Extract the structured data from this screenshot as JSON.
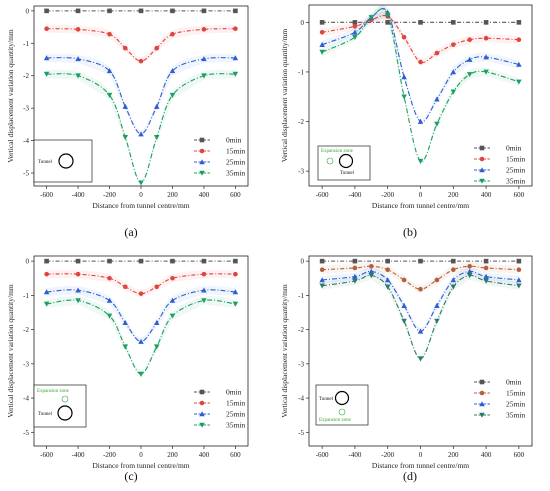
{
  "colors": {
    "0min": "#555555",
    "15min": "#e0443e",
    "25min": "#2d5fd1",
    "35min": "#1aa060",
    "inset_zone": "#33aa33",
    "axis": "#222222"
  },
  "chart_data": [
    {
      "type": "line",
      "panel_label": "(a)",
      "xlabel": "Distance from tunnel centre/mm",
      "ylabel": "Vertical displacement variation quantity/mm",
      "xlim": [
        -680,
        680
      ],
      "ylim": [
        -5.4,
        0.15
      ],
      "xticks": [
        -600,
        -400,
        -200,
        0,
        200,
        400,
        600
      ],
      "xtick_labels": [
        "-600",
        "-400",
        "-200",
        "0",
        "200",
        "400",
        "600"
      ],
      "yticks": [
        0,
        -1,
        -2,
        -3,
        -4,
        -5
      ],
      "ytick_labels": [
        "0",
        "-1",
        "-2",
        "-3",
        "-4",
        "-5"
      ],
      "legend_placement": "lower-right",
      "inset": {
        "tunnel_label": "Tunnel",
        "zone_label": ""
      },
      "x": [
        -600,
        -400,
        -200,
        -100,
        0,
        100,
        200,
        400,
        600
      ],
      "series": [
        {
          "name": "0min",
          "marker": "square",
          "color": "#555555",
          "values": [
            0,
            0,
            0,
            0,
            0,
            0,
            0,
            0,
            0
          ]
        },
        {
          "name": "15min",
          "marker": "circle",
          "color": "#e0443e",
          "values": [
            -0.55,
            -0.57,
            -0.72,
            -1.15,
            -1.55,
            -1.15,
            -0.72,
            -0.57,
            -0.55
          ]
        },
        {
          "name": "25min",
          "marker": "triangle-up",
          "color": "#2d5fd1",
          "values": [
            -1.45,
            -1.48,
            -1.85,
            -2.95,
            -3.8,
            -2.95,
            -1.85,
            -1.48,
            -1.45
          ]
        },
        {
          "name": "35min",
          "marker": "triangle-down",
          "color": "#1aa060",
          "values": [
            -1.95,
            -2.0,
            -2.6,
            -3.9,
            -5.3,
            -3.9,
            -2.6,
            -2.0,
            -1.95
          ]
        }
      ]
    },
    {
      "type": "line",
      "panel_label": "(b)",
      "xlabel": "Distance from tunnel centre/mm",
      "ylabel": "Vertical displacement variation quantity/mm",
      "xlim": [
        -680,
        680
      ],
      "ylim": [
        -3.3,
        0.35
      ],
      "xticks": [
        -600,
        -400,
        -200,
        0,
        200,
        400,
        600
      ],
      "xtick_labels": [
        "-600",
        "-400",
        "-200",
        "0",
        "200",
        "400",
        "600"
      ],
      "yticks": [
        0,
        -1,
        -2,
        -3
      ],
      "ytick_labels": [
        "0",
        "-1",
        "-2",
        "-3"
      ],
      "legend_placement": "lower-right",
      "inset": {
        "tunnel_label": "Tunnel",
        "zone_label": "Expansion zone"
      },
      "x": [
        -600,
        -400,
        -300,
        -200,
        -100,
        0,
        100,
        200,
        300,
        400,
        600
      ],
      "series": [
        {
          "name": "0min",
          "marker": "square",
          "color": "#555555",
          "values": [
            0,
            0,
            0,
            0,
            0,
            0,
            0,
            0,
            0,
            0,
            0
          ]
        },
        {
          "name": "15min",
          "marker": "circle",
          "color": "#e0443e",
          "values": [
            -0.2,
            -0.08,
            0.05,
            0.12,
            -0.3,
            -0.8,
            -0.62,
            -0.45,
            -0.35,
            -0.32,
            -0.35
          ]
        },
        {
          "name": "25min",
          "marker": "triangle-up",
          "color": "#2d5fd1",
          "values": [
            -0.45,
            -0.2,
            0.1,
            0.2,
            -1.1,
            -2.0,
            -1.55,
            -1.0,
            -0.75,
            -0.7,
            -0.85
          ]
        },
        {
          "name": "35min",
          "marker": "triangle-down",
          "color": "#1aa060",
          "values": [
            -0.6,
            -0.3,
            0.1,
            0.15,
            -1.5,
            -2.8,
            -2.05,
            -1.4,
            -1.05,
            -1.0,
            -1.2
          ]
        }
      ]
    },
    {
      "type": "line",
      "panel_label": "(c)",
      "xlabel": "Distance from tunnel centre/mm",
      "ylabel": "Vertical displacement variation quantity/mm",
      "xlim": [
        -680,
        680
      ],
      "ylim": [
        -5.4,
        0.15
      ],
      "xticks": [
        -600,
        -400,
        -200,
        0,
        200,
        400,
        600
      ],
      "xtick_labels": [
        "-600",
        "-400",
        "-200",
        "0",
        "200",
        "400",
        "600"
      ],
      "yticks": [
        0,
        -1,
        -2,
        -3,
        -4,
        -5
      ],
      "ytick_labels": [
        "0",
        "-1",
        "-2",
        "-3",
        "-4",
        "-5"
      ],
      "legend_placement": "lower-right",
      "inset": {
        "tunnel_label": "Tunnel",
        "zone_label": "Expansion zone"
      },
      "x": [
        -600,
        -400,
        -200,
        -100,
        0,
        100,
        200,
        400,
        600
      ],
      "series": [
        {
          "name": "0min",
          "marker": "square",
          "color": "#555555",
          "values": [
            0,
            0,
            0,
            0,
            0,
            0,
            0,
            0,
            0
          ]
        },
        {
          "name": "15min",
          "marker": "circle",
          "color": "#e0443e",
          "values": [
            -0.38,
            -0.38,
            -0.5,
            -0.75,
            -0.95,
            -0.75,
            -0.5,
            -0.38,
            -0.38
          ]
        },
        {
          "name": "25min",
          "marker": "triangle-up",
          "color": "#2d5fd1",
          "values": [
            -0.9,
            -0.85,
            -1.15,
            -1.8,
            -2.35,
            -1.8,
            -1.15,
            -0.85,
            -0.9
          ]
        },
        {
          "name": "35min",
          "marker": "triangle-down",
          "color": "#1aa060",
          "values": [
            -1.25,
            -1.15,
            -1.6,
            -2.5,
            -3.3,
            -2.5,
            -1.6,
            -1.15,
            -1.25
          ]
        }
      ]
    },
    {
      "type": "line",
      "panel_label": "(d)",
      "xlabel": "Distance from tunnel centre/mm",
      "ylabel": "Vertical displacement variation quantity/mm",
      "xlim": [
        -680,
        680
      ],
      "ylim": [
        -5.4,
        0.15
      ],
      "xticks": [
        -600,
        -400,
        -200,
        0,
        200,
        400,
        600
      ],
      "xtick_labels": [
        "-600",
        "-400",
        "-200",
        "0",
        "200",
        "400",
        "600"
      ],
      "yticks": [
        0,
        -1,
        -2,
        -3,
        -4,
        -5
      ],
      "ytick_labels": [
        "0",
        "-1",
        "-2",
        "-3",
        "-4",
        "-5"
      ],
      "legend_placement": "lower-right",
      "inset": {
        "tunnel_label": "Tunnel",
        "zone_label": "Expansion zone"
      },
      "x": [
        -600,
        -400,
        -300,
        -200,
        -100,
        0,
        100,
        200,
        300,
        400,
        600
      ],
      "series": [
        {
          "name": "0min",
          "marker": "square",
          "color": "#555555",
          "values": [
            0,
            0,
            0,
            0,
            0,
            0,
            0,
            0,
            0,
            0,
            0
          ]
        },
        {
          "name": "15min",
          "marker": "circle",
          "color": "#b5603a",
          "values": [
            -0.25,
            -0.2,
            -0.15,
            -0.25,
            -0.55,
            -0.82,
            -0.55,
            -0.25,
            -0.15,
            -0.2,
            -0.25
          ]
        },
        {
          "name": "25min",
          "marker": "triangle-up",
          "color": "#2d5fd1",
          "values": [
            -0.55,
            -0.45,
            -0.3,
            -0.55,
            -1.3,
            -2.05,
            -1.3,
            -0.55,
            -0.3,
            -0.45,
            -0.55
          ]
        },
        {
          "name": "35min",
          "marker": "triangle-down",
          "color": "#2a7a6a",
          "values": [
            -0.72,
            -0.58,
            -0.42,
            -0.75,
            -1.75,
            -2.85,
            -1.75,
            -0.75,
            -0.42,
            -0.58,
            -0.72
          ]
        }
      ]
    }
  ]
}
